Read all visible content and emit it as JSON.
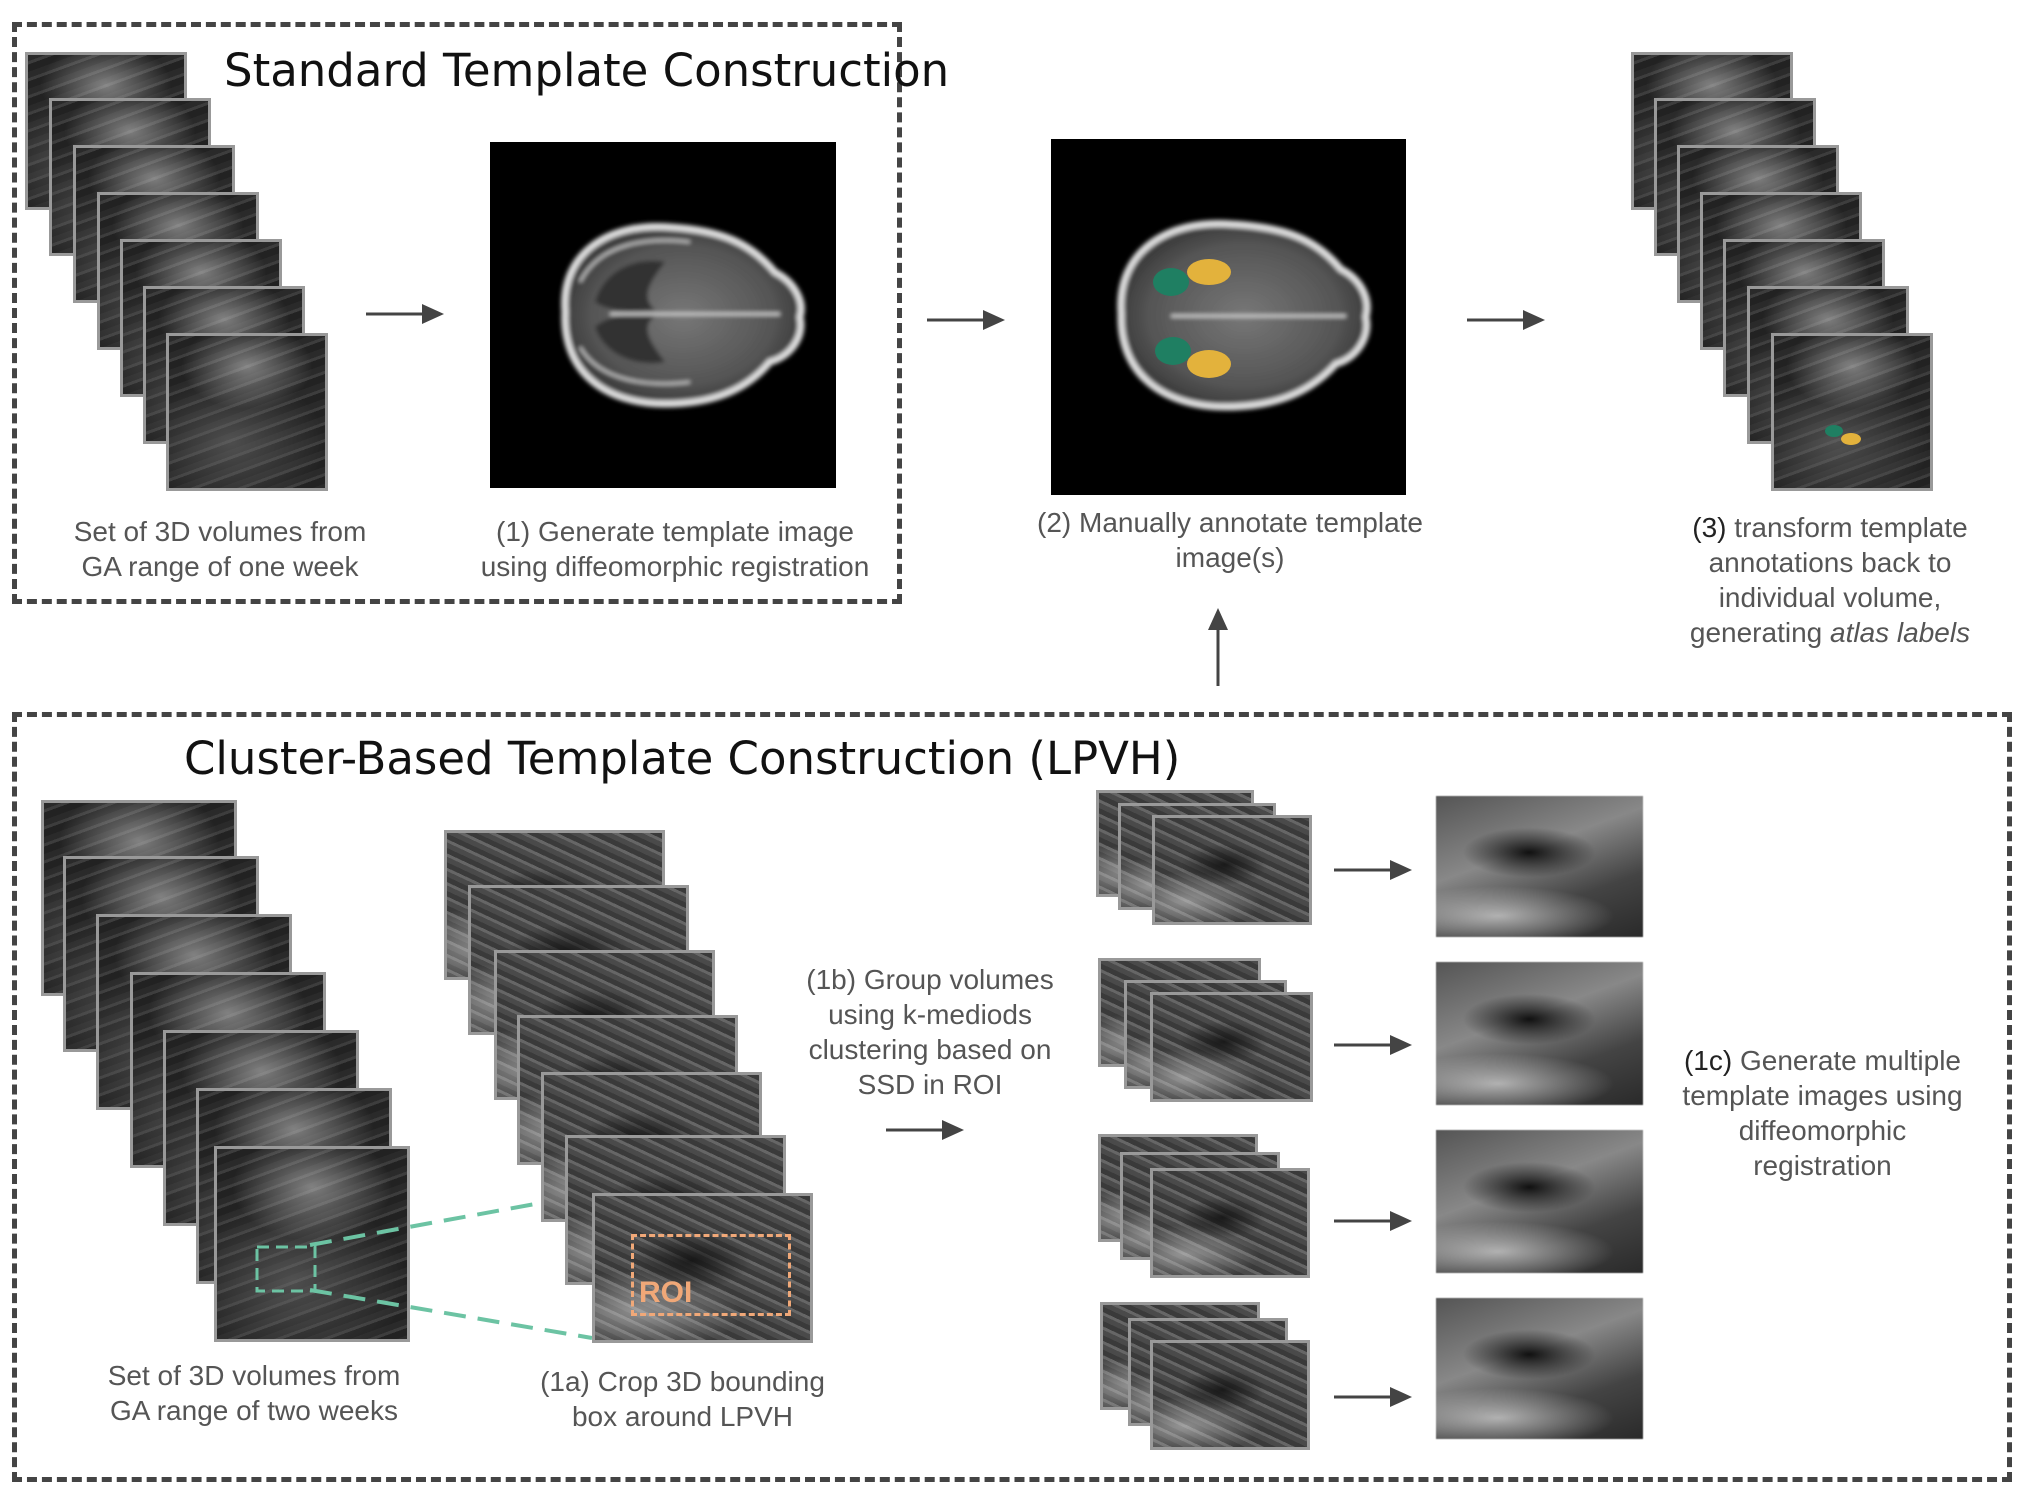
{
  "standard_section": {
    "title": "Standard Template Construction",
    "caption_volumes": [
      "Set of 3D volumes from",
      "GA range of one week"
    ],
    "caption_step1": [
      "(1) Generate template image",
      "using diffeomorphic registration"
    ]
  },
  "annotate_step": {
    "caption": [
      "(2) Manually annotate template",
      "image(s)"
    ],
    "label_colors": {
      "teal": "#1f7f62",
      "yellow": "#e3b23c"
    }
  },
  "transform_step": {
    "caption_line1_num": "(3)",
    "caption_line1_rest": " transform template",
    "caption_line2": "annotations back to",
    "caption_line3": "individual volume,",
    "caption_line4_plain": "generating ",
    "caption_line4_italic": "atlas labels"
  },
  "cluster_section": {
    "title": "Cluster-Based Template Construction (LPVH)",
    "caption_volumes": [
      "Set of 3D volumes from",
      "GA range of two weeks"
    ],
    "caption_crop": [
      "(1a) Crop 3D bounding",
      "box around LPVH"
    ],
    "caption_group": [
      "(1b) Group volumes",
      "using k-mediods",
      "clustering based on",
      "SSD in ROI"
    ],
    "caption_generate_num": "(1c)",
    "caption_generate_rest": " Generate multiple",
    "caption_generate_lines": [
      "template images using",
      "diffeomorphic",
      "registration"
    ],
    "roi_label": "ROI",
    "roi_color": "#f0a878",
    "crop_line_color": "#6cc3a3"
  },
  "colors": {
    "border": "#444444",
    "arrow": "#444444",
    "text": "#555555",
    "title": "#111111"
  }
}
